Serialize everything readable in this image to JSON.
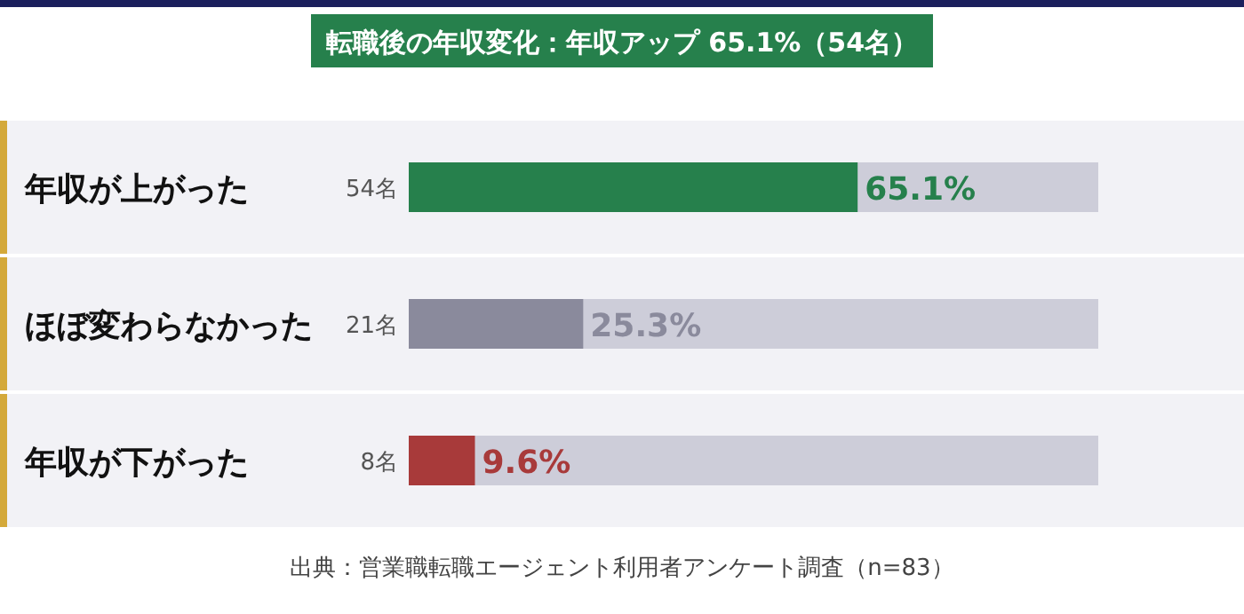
{
  "chart_data": {
    "type": "bar",
    "orientation": "horizontal",
    "title": "転職後の年収変化：年収アップ 65.1%（54名）",
    "categories": [
      "年収が上がった",
      "ほぼ変わらなかった",
      "年収が下がった"
    ],
    "values": [
      65.1,
      25.3,
      9.6
    ],
    "colors": [
      "#26804c",
      "#8a8a9c",
      "#a83a3a"
    ],
    "value_labels": [
      "65.1%",
      "25.3%",
      "9.6%"
    ],
    "xlim": [
      0,
      100
    ],
    "annotations": [
      "54名",
      "21名",
      "8名",
      "出典：営業職転職エージェント利用者アンケート調査（n=83）"
    ]
  }
}
